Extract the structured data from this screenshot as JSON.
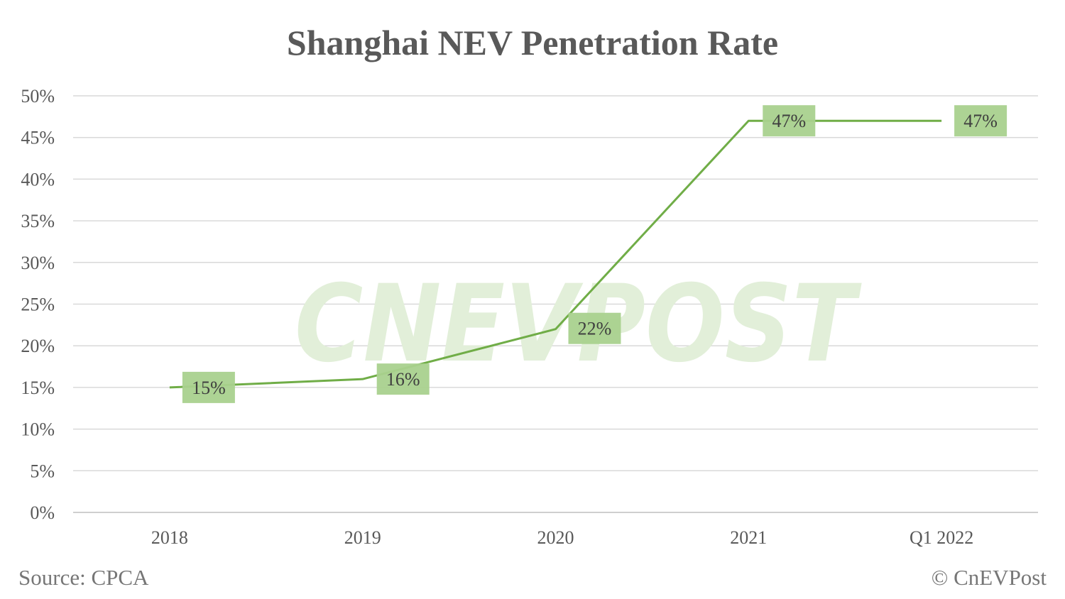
{
  "chart_data": {
    "type": "line",
    "title": "Shanghai NEV Penetration Rate",
    "categories": [
      "2018",
      "2019",
      "2020",
      "2021",
      "Q1 2022"
    ],
    "series": [
      {
        "values": [
          15,
          16,
          22,
          47,
          47
        ]
      }
    ],
    "data_labels": [
      "15%",
      "16%",
      "22%",
      "47%",
      "47%"
    ],
    "y_ticks": [
      "0%",
      "5%",
      "10%",
      "15%",
      "20%",
      "25%",
      "30%",
      "35%",
      "40%",
      "45%",
      "50%"
    ],
    "ylim": [
      0,
      50
    ],
    "y_step": 5,
    "grid": true,
    "legend": "none",
    "line_color": "#70ad47",
    "label_box_color": "#a9d18e"
  },
  "footer": {
    "source": "Source: CPCA",
    "credit": "© CnEVPost"
  },
  "watermark": {
    "text": "CNEVPOST",
    "color": "#e2efd9"
  }
}
